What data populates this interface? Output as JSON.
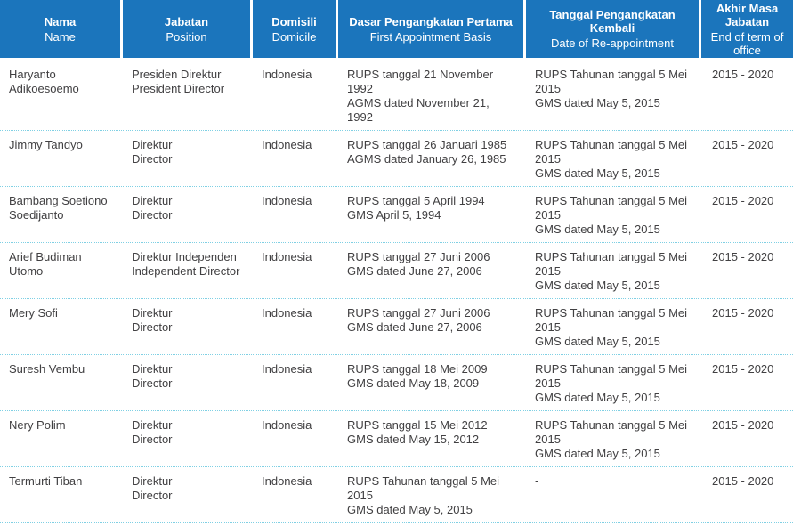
{
  "colors": {
    "header_bg": "#1B75BC",
    "header_text": "#FFFFFF",
    "body_text": "#414042",
    "row_divider": "#7FD0E4"
  },
  "table": {
    "columns": [
      {
        "label_id": "Nama",
        "label_en": "Name"
      },
      {
        "label_id": "Jabatan",
        "label_en": "Position"
      },
      {
        "label_id": "Domisili",
        "label_en": "Domicile"
      },
      {
        "label_id": "Dasar Pengangkatan Pertama",
        "label_en": "First Appointment Basis"
      },
      {
        "label_id": "Tanggal Pengangkatan Kembali",
        "label_en": "Date of Re-appointment"
      },
      {
        "label_id": "Akhir Masa Jabatan",
        "label_en": "End of term of office"
      }
    ],
    "rows": [
      {
        "name": "Haryanto Adikoesoemo",
        "position_id": "Presiden Direktur",
        "position_en": "President Director",
        "domicile": "Indonesia",
        "first_appointment_id": "RUPS tanggal 21 November 1992",
        "first_appointment_en": "AGMS dated November 21, 1992",
        "reappointment_id": "RUPS Tahunan tanggal 5 Mei 2015",
        "reappointment_en": "GMS dated May 5, 2015",
        "term": "2015 - 2020"
      },
      {
        "name": "Jimmy Tandyo",
        "position_id": "Direktur",
        "position_en": "Director",
        "domicile": "Indonesia",
        "first_appointment_id": "RUPS tanggal 26 Januari 1985",
        "first_appointment_en": "AGMS dated January 26, 1985",
        "reappointment_id": "RUPS Tahunan tanggal 5 Mei 2015",
        "reappointment_en": "GMS dated May 5, 2015",
        "term": "2015 - 2020"
      },
      {
        "name": "Bambang Soetiono Soedijanto",
        "position_id": "Direktur",
        "position_en": "Director",
        "domicile": "Indonesia",
        "first_appointment_id": "RUPS tanggal 5 April 1994",
        "first_appointment_en": "GMS April 5, 1994",
        "reappointment_id": "RUPS Tahunan tanggal 5 Mei 2015",
        "reappointment_en": "GMS dated May 5, 2015",
        "term": "2015 - 2020"
      },
      {
        "name": "Arief Budiman Utomo",
        "position_id": "Direktur Independen",
        "position_en": "Independent Director",
        "domicile": "Indonesia",
        "first_appointment_id": "RUPS tanggal 27 Juni 2006",
        "first_appointment_en": "GMS dated June 27, 2006",
        "reappointment_id": "RUPS Tahunan tanggal 5 Mei 2015",
        "reappointment_en": "GMS dated May 5, 2015",
        "term": "2015 - 2020"
      },
      {
        "name": "Mery Sofi",
        "position_id": "Direktur",
        "position_en": "Director",
        "domicile": "Indonesia",
        "first_appointment_id": "RUPS tanggal 27 Juni 2006",
        "first_appointment_en": "GMS dated June 27, 2006",
        "reappointment_id": "RUPS Tahunan tanggal 5 Mei 2015",
        "reappointment_en": "GMS dated May 5, 2015",
        "term": "2015 - 2020"
      },
      {
        "name": "Suresh Vembu",
        "position_id": "Direktur",
        "position_en": "Director",
        "domicile": "Indonesia",
        "first_appointment_id": "RUPS tanggal 18 Mei 2009",
        "first_appointment_en": "GMS dated May 18, 2009",
        "reappointment_id": "RUPS Tahunan tanggal 5 Mei 2015",
        "reappointment_en": "GMS dated May 5, 2015",
        "term": "2015 - 2020"
      },
      {
        "name": "Nery Polim",
        "position_id": "Direktur",
        "position_en": "Director",
        "domicile": "Indonesia",
        "first_appointment_id": "RUPS tanggal 15 Mei 2012",
        "first_appointment_en": "GMS dated May 15, 2012",
        "reappointment_id": "RUPS Tahunan tanggal 5 Mei 2015",
        "reappointment_en": "GMS dated May 5, 2015",
        "term": "2015 - 2020"
      },
      {
        "name": "Termurti Tiban",
        "position_id": "Direktur",
        "position_en": "Director",
        "domicile": "Indonesia",
        "first_appointment_id": "RUPS Tahunan tanggal 5 Mei 2015",
        "first_appointment_en": "GMS dated May 5, 2015",
        "reappointment_id": "-",
        "reappointment_en": "",
        "term": "2015 - 2020"
      }
    ]
  }
}
